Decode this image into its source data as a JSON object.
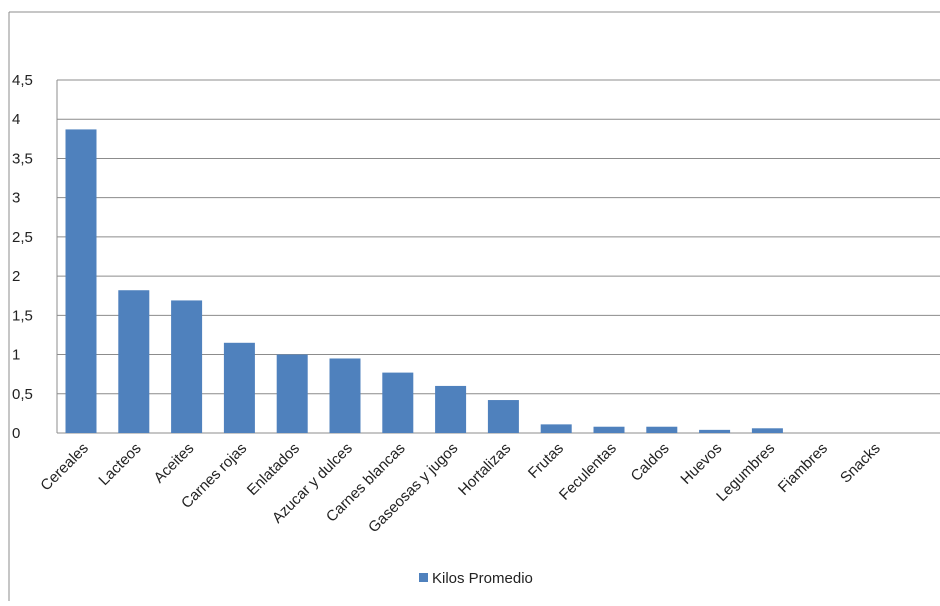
{
  "chart_data": {
    "type": "bar",
    "categories": [
      "Cereales",
      "Lacteos",
      "Aceites",
      "Carnes rojas",
      "Enlatados",
      "Azucar y dulces",
      "Carnes blancas",
      "Gaseosas y jugos",
      "Hortalizas",
      "Frutas",
      "Feculentas",
      "Caldos",
      "Huevos",
      "Legumbres",
      "Fiambres",
      "Snacks"
    ],
    "series": [
      {
        "name": "Kilos Promedio",
        "values": [
          3.87,
          1.82,
          1.69,
          1.15,
          1.0,
          0.95,
          0.77,
          0.6,
          0.42,
          0.11,
          0.08,
          0.08,
          0.04,
          0.06,
          0.0,
          0.0
        ]
      }
    ],
    "y_ticks": [
      "0",
      "0,5",
      "1",
      "1,5",
      "2",
      "2,5",
      "3",
      "3,5",
      "4",
      "4,5"
    ],
    "ylim": [
      0,
      4.5
    ],
    "grid": true,
    "legend_position": "bottom",
    "title": "",
    "xlabel": "",
    "ylabel": ""
  },
  "colors": {
    "bar": "#4f81bd",
    "grid": "#8c8c8c",
    "frame": "#8c8c8c"
  }
}
